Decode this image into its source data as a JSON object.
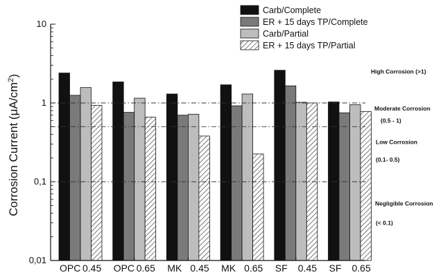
{
  "chart_data": {
    "type": "bar",
    "y_scale": "log",
    "ylim": [
      0.01,
      10
    ],
    "y_ticks": [
      {
        "value": 10,
        "label": "10"
      },
      {
        "value": 1,
        "label": "1"
      },
      {
        "value": 0.1,
        "label": "0,1"
      },
      {
        "value": 0.01,
        "label": "0,01"
      }
    ],
    "ylabel_prefix": "Corrosion Current (",
    "ylabel_mu": "μ",
    "ylabel_unit": "A/cm",
    "ylabel_sup": "2",
    "ylabel_suffix": ")",
    "categories": [
      "OPC 0.45",
      "OPC 0.65",
      "MK 0.45",
      "MK 0.65",
      "SF 0.45",
      "SF 0.65"
    ],
    "category_parts": [
      [
        "OPC",
        "0.45"
      ],
      [
        "OPC",
        "0.65"
      ],
      [
        "MK",
        "0.45"
      ],
      [
        "MK",
        "0.65"
      ],
      [
        "SF",
        "0.45"
      ],
      [
        "SF",
        "0.65"
      ]
    ],
    "series": [
      {
        "name": "Carb/Complete",
        "color": "#111111",
        "pattern": "solid",
        "values": [
          2.4,
          1.85,
          1.3,
          1.7,
          2.6,
          1.03
        ]
      },
      {
        "name": "ER + 15 days TP/Complete",
        "color": "#7a7a7a",
        "pattern": "solid",
        "values": [
          1.25,
          0.76,
          0.7,
          0.92,
          1.65,
          0.75
        ]
      },
      {
        "name": "Carb/Partial",
        "color": "#bdbdbd",
        "pattern": "solid",
        "values": [
          1.57,
          1.15,
          0.72,
          1.3,
          1.02,
          0.95
        ]
      },
      {
        "name": "ER + 15 days TP/Partial",
        "color": "#ffffff",
        "pattern": "hatch",
        "values": [
          0.93,
          0.66,
          0.38,
          0.225,
          1.0,
          0.78
        ]
      }
    ],
    "reference_lines": [
      {
        "value": 1,
        "style": "dash-dot"
      },
      {
        "value": 0.5,
        "style": "dash-dot"
      },
      {
        "value": 0.1,
        "style": "dash-dot"
      }
    ],
    "annotations": [
      {
        "text": "High Corrosion (>1)",
        "y_value": 2.5
      },
      {
        "text": "Moderate Corrosion",
        "y_value": 0.85
      },
      {
        "text": "(0.5 - 1)",
        "y_value": 0.6
      },
      {
        "text": "Low Corrosion",
        "y_value": 0.32
      },
      {
        "text": "(0.1- 0.5)",
        "y_value": 0.19
      },
      {
        "text": "Negligible Corrosion",
        "y_value": 0.053
      },
      {
        "text": "(< 0.1)",
        "y_value": 0.03
      }
    ],
    "legend_position": "top-right",
    "grid": false
  }
}
